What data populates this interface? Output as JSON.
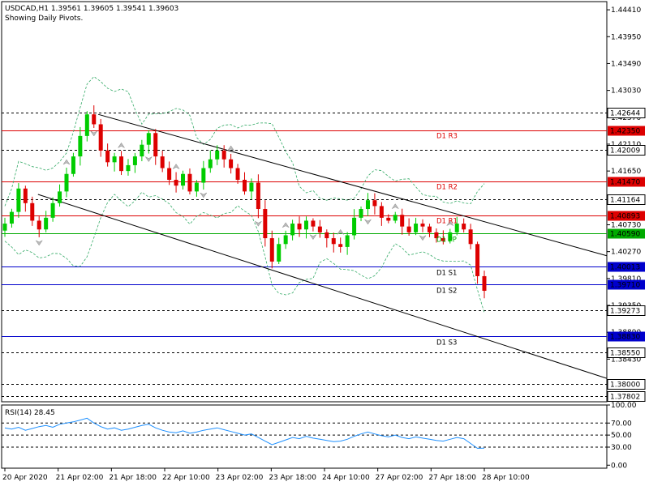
{
  "header": {
    "symbol_line": "USDCAD,H1  1.39561 1.39605 1.39541 1.39603",
    "subtitle": "Showing Daily Pivots."
  },
  "colors": {
    "bull": "#00cc00",
    "bear": "#dd0000",
    "resistance": "#dd0000",
    "support": "#0000cc",
    "pivot": "#00aa00",
    "band": "#33aa66",
    "rsi": "#1e90ff",
    "grid": "#000000"
  },
  "chart_data": [
    {
      "type": "candlestick",
      "ylim": [
        1.377,
        1.4455
      ],
      "y_ticks": [
        "1.44410",
        "1.43950",
        "1.43490",
        "1.43030",
        "1.42570",
        "1.42110",
        "1.41650",
        "1.41190",
        "1.40730",
        "1.40270",
        "1.39810",
        "1.39350",
        "1.38890",
        "1.38430"
      ],
      "x_ticks": [
        "20 Apr 2020",
        "21 Apr 02:00",
        "21 Apr 18:00",
        "22 Apr 10:00",
        "23 Apr 02:00",
        "23 Apr 18:00",
        "24 Apr 10:00",
        "27 Apr 02:00",
        "27 Apr 18:00",
        "28 Apr 10:00"
      ],
      "price_levels": [
        {
          "label": "1.42644",
          "value": 1.42644,
          "kind": "dotted"
        },
        {
          "label": "1.42350",
          "value": 1.4235,
          "kind": "resistance",
          "pivot": "D1 R3"
        },
        {
          "label": "1.42009",
          "value": 1.42009,
          "kind": "dotted"
        },
        {
          "label": "1.41470",
          "value": 1.4147,
          "kind": "resistance",
          "pivot": "D1 R2"
        },
        {
          "label": "1.41164",
          "value": 1.41164,
          "kind": "dotted"
        },
        {
          "label": "1.40893",
          "value": 1.40893,
          "kind": "resistance",
          "pivot": "D1 R1"
        },
        {
          "label": "1.40590",
          "value": 1.4059,
          "kind": "pivot",
          "pivot": "D1 PP"
        },
        {
          "label": "1.40013",
          "value": 1.40013,
          "kind": "support",
          "pivot": "D1 S1"
        },
        {
          "label": "1.39710",
          "value": 1.3971,
          "kind": "support",
          "pivot": "D1 S2"
        },
        {
          "label": "1.39273",
          "value": 1.39273,
          "kind": "dotted"
        },
        {
          "label": "1.38830",
          "value": 1.3883,
          "kind": "support",
          "pivot": "D1 S3"
        },
        {
          "label": "1.38550",
          "value": 1.3855,
          "kind": "dotted"
        },
        {
          "label": "1.38000",
          "value": 1.38,
          "kind": "dotted"
        },
        {
          "label": "1.37802",
          "value": 1.37802,
          "kind": "dotted"
        }
      ],
      "close_path": [
        1.4075,
        1.4095,
        1.4135,
        1.411,
        1.408,
        1.4065,
        1.4085,
        1.411,
        1.413,
        1.416,
        1.419,
        1.4225,
        1.4262,
        1.4245,
        1.42,
        1.418,
        1.419,
        1.4165,
        1.4175,
        1.419,
        1.421,
        1.423,
        1.419,
        1.417,
        1.415,
        1.414,
        1.416,
        1.413,
        1.4145,
        1.417,
        1.4185,
        1.42,
        1.4185,
        1.417,
        1.415,
        1.413,
        1.4145,
        1.41,
        1.405,
        1.401,
        1.404,
        1.4055,
        1.4075,
        1.4065,
        1.408,
        1.407,
        1.406,
        1.405,
        1.404,
        1.4035,
        1.4055,
        1.4085,
        1.41,
        1.4115,
        1.4105,
        1.4085,
        1.408,
        1.409,
        1.407,
        1.406,
        1.4075,
        1.407,
        1.406,
        1.405,
        1.4045,
        1.406,
        1.4075,
        1.4065,
        1.404,
        1.3985,
        1.396
      ],
      "channel_lines": [
        {
          "from": [
            0.155,
            1.4262
          ],
          "to": [
            1.0,
            1.402
          ]
        },
        {
          "from": [
            0.055,
            1.4125
          ],
          "to": [
            1.0,
            1.381
          ]
        }
      ]
    },
    {
      "type": "line",
      "title": "RSI(14) 28.45",
      "ylim": [
        -5,
        100
      ],
      "y_ticks": [
        "100.00",
        "70.00",
        "50.00",
        "30.00",
        "0.00"
      ],
      "levels": [
        70,
        50,
        30
      ],
      "values": [
        62,
        60,
        63,
        58,
        61,
        64,
        66,
        63,
        68,
        70,
        72,
        75,
        78,
        70,
        64,
        60,
        62,
        58,
        60,
        63,
        66,
        68,
        62,
        58,
        55,
        54,
        57,
        53,
        55,
        58,
        60,
        62,
        59,
        56,
        53,
        50,
        52,
        46,
        40,
        34,
        38,
        42,
        46,
        44,
        48,
        45,
        43,
        41,
        39,
        40,
        43,
        48,
        52,
        55,
        52,
        49,
        47,
        50,
        46,
        44,
        47,
        45,
        43,
        41,
        40,
        43,
        46,
        44,
        36,
        28,
        28.45
      ]
    }
  ]
}
